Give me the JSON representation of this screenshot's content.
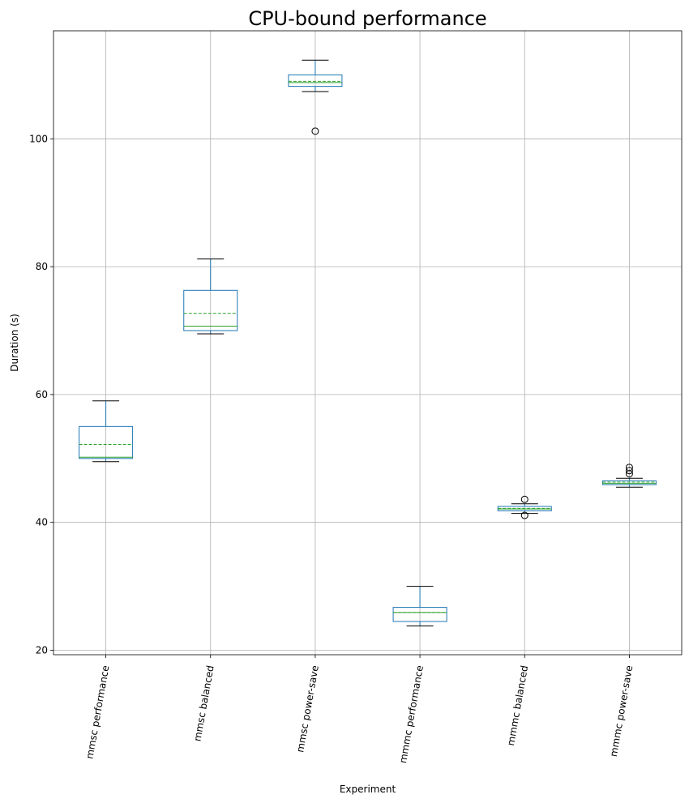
{
  "chart_data": {
    "type": "box",
    "title": "CPU-bound performance",
    "xlabel": "Experiment",
    "ylabel": "Duration (s)",
    "ylim": [
      19.3,
      116.9
    ],
    "yticks": [
      20,
      40,
      60,
      80,
      100
    ],
    "grid": true,
    "colors": {
      "box": "#1f77b4",
      "median": "#2ca02c",
      "mean": "#2ca02c",
      "cap": "#000000",
      "flier": "#000000",
      "grid": "#b0b0b0"
    },
    "series": [
      {
        "name": "mmsc performance",
        "whisker_low": 49.5,
        "q1": 50.0,
        "median": 50.2,
        "mean": 52.2,
        "q3": 55.0,
        "whisker_high": 59.0,
        "outliers": []
      },
      {
        "name": "mmsc balanced",
        "whisker_low": 69.5,
        "q1": 70.0,
        "median": 70.7,
        "mean": 72.7,
        "q3": 76.3,
        "whisker_high": 81.2,
        "outliers": []
      },
      {
        "name": "mmsc power-save",
        "whisker_low": 107.4,
        "q1": 108.2,
        "median": 108.8,
        "mean": 109.0,
        "q3": 110.0,
        "whisker_high": 112.3,
        "outliers": [
          101.2
        ]
      },
      {
        "name": "mmmc performance",
        "whisker_low": 23.8,
        "q1": 24.5,
        "median": 25.9,
        "mean": 25.9,
        "q3": 26.7,
        "whisker_high": 30.0,
        "outliers": []
      },
      {
        "name": "mmmc balanced",
        "whisker_low": 41.4,
        "q1": 41.8,
        "median": 42.1,
        "mean": 42.2,
        "q3": 42.5,
        "whisker_high": 42.9,
        "outliers": [
          41.1,
          43.6
        ]
      },
      {
        "name": "mmmc power-save",
        "whisker_low": 45.5,
        "q1": 45.9,
        "median": 46.1,
        "mean": 46.3,
        "q3": 46.5,
        "whisker_high": 46.9,
        "outliers": [
          47.6,
          48.1,
          48.6
        ]
      }
    ]
  }
}
